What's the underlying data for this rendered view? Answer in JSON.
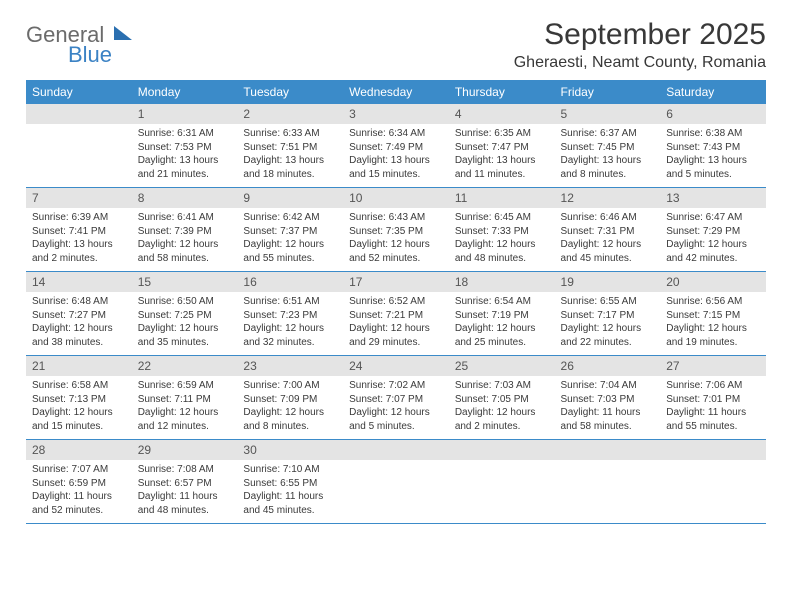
{
  "logo": {
    "word1": "General",
    "word2": "Blue"
  },
  "title": "September 2025",
  "location": "Gheraesti, Neamt County, Romania",
  "colors": {
    "header_bg": "#3b8bc9",
    "header_text": "#ffffff",
    "daynum_bg": "#e4e4e4",
    "row_border": "#3b8bc9",
    "logo_gray": "#6b6b6b",
    "logo_blue": "#3b82c4"
  },
  "day_labels": [
    "Sunday",
    "Monday",
    "Tuesday",
    "Wednesday",
    "Thursday",
    "Friday",
    "Saturday"
  ],
  "weeks": [
    [
      {
        "n": "",
        "sr": "",
        "ss": "",
        "dl": ""
      },
      {
        "n": "1",
        "sr": "6:31 AM",
        "ss": "7:53 PM",
        "dl": "13 hours and 21 minutes."
      },
      {
        "n": "2",
        "sr": "6:33 AM",
        "ss": "7:51 PM",
        "dl": "13 hours and 18 minutes."
      },
      {
        "n": "3",
        "sr": "6:34 AM",
        "ss": "7:49 PM",
        "dl": "13 hours and 15 minutes."
      },
      {
        "n": "4",
        "sr": "6:35 AM",
        "ss": "7:47 PM",
        "dl": "13 hours and 11 minutes."
      },
      {
        "n": "5",
        "sr": "6:37 AM",
        "ss": "7:45 PM",
        "dl": "13 hours and 8 minutes."
      },
      {
        "n": "6",
        "sr": "6:38 AM",
        "ss": "7:43 PM",
        "dl": "13 hours and 5 minutes."
      }
    ],
    [
      {
        "n": "7",
        "sr": "6:39 AM",
        "ss": "7:41 PM",
        "dl": "13 hours and 2 minutes."
      },
      {
        "n": "8",
        "sr": "6:41 AM",
        "ss": "7:39 PM",
        "dl": "12 hours and 58 minutes."
      },
      {
        "n": "9",
        "sr": "6:42 AM",
        "ss": "7:37 PM",
        "dl": "12 hours and 55 minutes."
      },
      {
        "n": "10",
        "sr": "6:43 AM",
        "ss": "7:35 PM",
        "dl": "12 hours and 52 minutes."
      },
      {
        "n": "11",
        "sr": "6:45 AM",
        "ss": "7:33 PM",
        "dl": "12 hours and 48 minutes."
      },
      {
        "n": "12",
        "sr": "6:46 AM",
        "ss": "7:31 PM",
        "dl": "12 hours and 45 minutes."
      },
      {
        "n": "13",
        "sr": "6:47 AM",
        "ss": "7:29 PM",
        "dl": "12 hours and 42 minutes."
      }
    ],
    [
      {
        "n": "14",
        "sr": "6:48 AM",
        "ss": "7:27 PM",
        "dl": "12 hours and 38 minutes."
      },
      {
        "n": "15",
        "sr": "6:50 AM",
        "ss": "7:25 PM",
        "dl": "12 hours and 35 minutes."
      },
      {
        "n": "16",
        "sr": "6:51 AM",
        "ss": "7:23 PM",
        "dl": "12 hours and 32 minutes."
      },
      {
        "n": "17",
        "sr": "6:52 AM",
        "ss": "7:21 PM",
        "dl": "12 hours and 29 minutes."
      },
      {
        "n": "18",
        "sr": "6:54 AM",
        "ss": "7:19 PM",
        "dl": "12 hours and 25 minutes."
      },
      {
        "n": "19",
        "sr": "6:55 AM",
        "ss": "7:17 PM",
        "dl": "12 hours and 22 minutes."
      },
      {
        "n": "20",
        "sr": "6:56 AM",
        "ss": "7:15 PM",
        "dl": "12 hours and 19 minutes."
      }
    ],
    [
      {
        "n": "21",
        "sr": "6:58 AM",
        "ss": "7:13 PM",
        "dl": "12 hours and 15 minutes."
      },
      {
        "n": "22",
        "sr": "6:59 AM",
        "ss": "7:11 PM",
        "dl": "12 hours and 12 minutes."
      },
      {
        "n": "23",
        "sr": "7:00 AM",
        "ss": "7:09 PM",
        "dl": "12 hours and 8 minutes."
      },
      {
        "n": "24",
        "sr": "7:02 AM",
        "ss": "7:07 PM",
        "dl": "12 hours and 5 minutes."
      },
      {
        "n": "25",
        "sr": "7:03 AM",
        "ss": "7:05 PM",
        "dl": "12 hours and 2 minutes."
      },
      {
        "n": "26",
        "sr": "7:04 AM",
        "ss": "7:03 PM",
        "dl": "11 hours and 58 minutes."
      },
      {
        "n": "27",
        "sr": "7:06 AM",
        "ss": "7:01 PM",
        "dl": "11 hours and 55 minutes."
      }
    ],
    [
      {
        "n": "28",
        "sr": "7:07 AM",
        "ss": "6:59 PM",
        "dl": "11 hours and 52 minutes."
      },
      {
        "n": "29",
        "sr": "7:08 AM",
        "ss": "6:57 PM",
        "dl": "11 hours and 48 minutes."
      },
      {
        "n": "30",
        "sr": "7:10 AM",
        "ss": "6:55 PM",
        "dl": "11 hours and 45 minutes."
      },
      {
        "n": "",
        "sr": "",
        "ss": "",
        "dl": ""
      },
      {
        "n": "",
        "sr": "",
        "ss": "",
        "dl": ""
      },
      {
        "n": "",
        "sr": "",
        "ss": "",
        "dl": ""
      },
      {
        "n": "",
        "sr": "",
        "ss": "",
        "dl": ""
      }
    ]
  ],
  "labels": {
    "sunrise": "Sunrise:",
    "sunset": "Sunset:",
    "daylight": "Daylight:"
  }
}
